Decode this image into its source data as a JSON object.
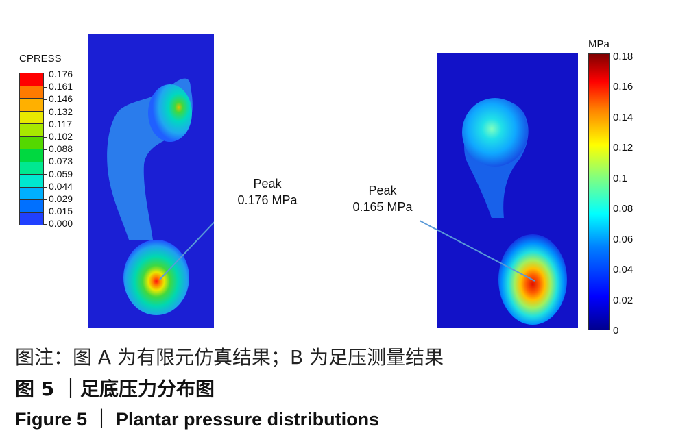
{
  "panel_a": {
    "legend_title": "CPRESS",
    "legend_values": [
      "0.176",
      "0.161",
      "0.146",
      "0.132",
      "0.117",
      "0.102",
      "0.088",
      "0.073",
      "0.059",
      "0.044",
      "0.029",
      "0.015",
      "0.000"
    ],
    "legend_colors": [
      "#ff0000",
      "#ff7a00",
      "#ffb000",
      "#e8e800",
      "#a8e800",
      "#54d800",
      "#00d840",
      "#00e890",
      "#00e8d0",
      "#00b0ff",
      "#0070ff",
      "#2040ff"
    ],
    "peak_label": "Peak",
    "peak_value": "0.176 MPa"
  },
  "panel_b": {
    "colorbar_unit": "MPa",
    "colorbar_ticks": [
      "0.18",
      "0.16",
      "0.14",
      "0.12",
      "0.1",
      "0.08",
      "0.06",
      "0.04",
      "0.02",
      "0"
    ],
    "peak_label": "Peak",
    "peak_value": "0.165 MPa"
  },
  "caption": {
    "note": "图注：图 A 为有限元仿真结果；B 为足压测量结果",
    "title_cn": "图 5 ｜足底压力分布图",
    "title_en": "Figure 5  ｜ Plantar pressure distributions"
  }
}
